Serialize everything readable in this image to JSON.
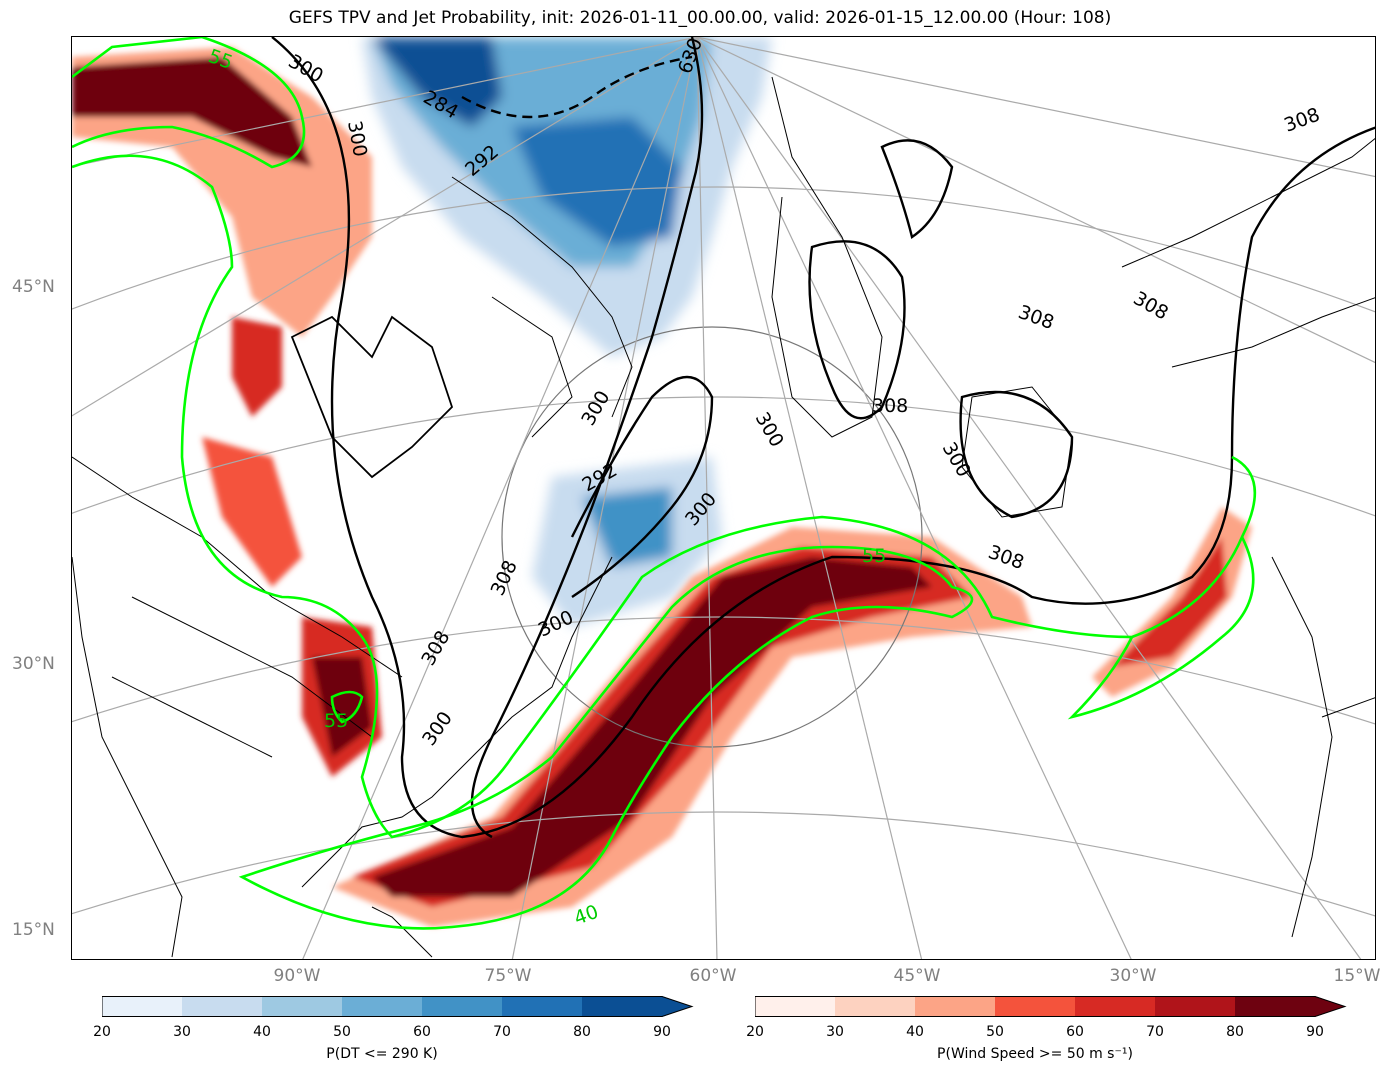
{
  "title": "GEFS TPV and Jet Probability, init: 2026-01-11_00.00.00, valid: 2026-01-15_12.00.00 (Hour: 108)",
  "lat_labels": [
    "45°N",
    "30°N",
    "15°N"
  ],
  "lon_labels": [
    "90°W",
    "75°W",
    "60°W",
    "45°W",
    "30°W",
    "15°W"
  ],
  "contour_labels_black": [
    "300",
    "284",
    "300",
    "292",
    "630",
    "308",
    "308",
    "308",
    "308",
    "300",
    "308",
    "300",
    "292",
    "300",
    "300",
    "300",
    "308",
    "300",
    "308"
  ],
  "contour_labels_green": [
    "55",
    "55",
    "55",
    "40"
  ],
  "colorbar_left": {
    "label": "P(DT <= 290 K)",
    "ticks": [
      "20",
      "30",
      "40",
      "50",
      "60",
      "70",
      "80",
      "90"
    ],
    "colors": [
      "#e8f1fa",
      "#c8dcef",
      "#9ec9e2",
      "#6baed6",
      "#4192c6",
      "#2171b5",
      "#0b4f94"
    ]
  },
  "colorbar_right": {
    "label": "P(Wind Speed >= 50 m s⁻¹)",
    "ticks": [
      "20",
      "30",
      "40",
      "50",
      "60",
      "70",
      "80",
      "90"
    ],
    "colors": [
      "#fff0eb",
      "#fdd2c0",
      "#fca486",
      "#f4533c",
      "#d72a24",
      "#b0141a",
      "#6e0210"
    ]
  },
  "colors": {
    "jet_contour": "#00ff00",
    "tpv_contour": "#000000",
    "graticule": "#aaaaaa",
    "axis_label": "#808080"
  }
}
